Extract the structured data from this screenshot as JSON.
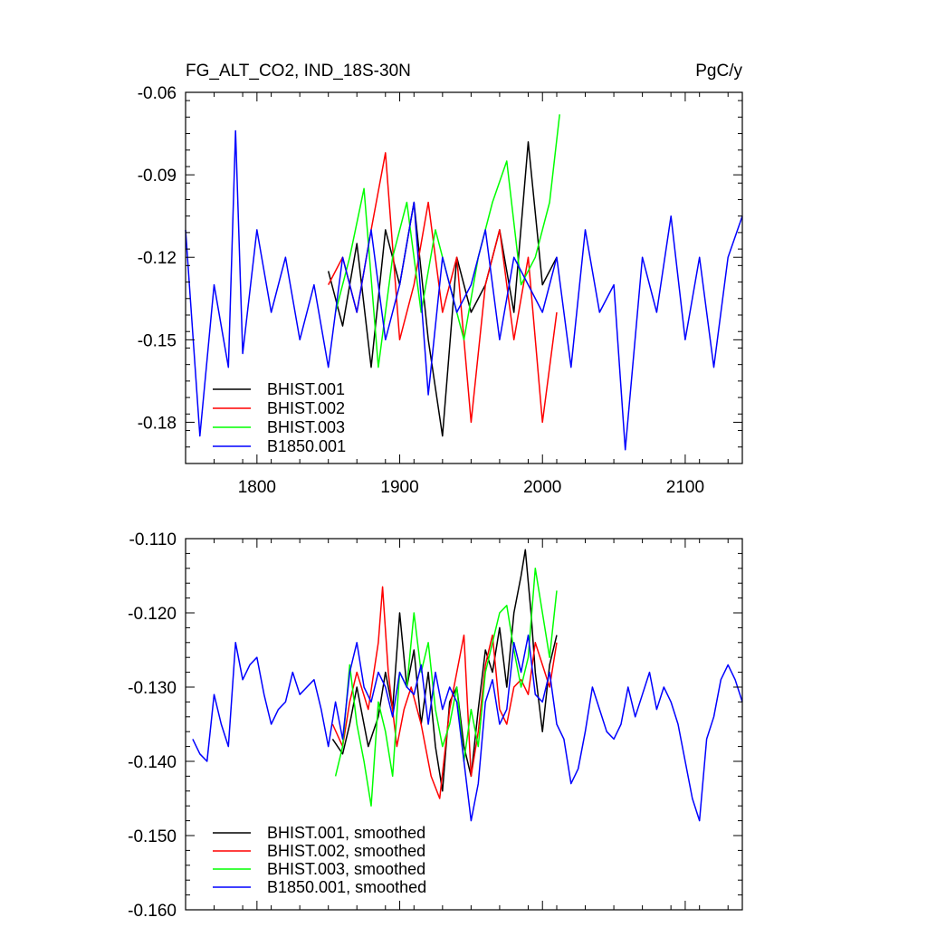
{
  "chart_data": [
    {
      "type": "line",
      "title": "FG_ALT_CO2, IND_18S-30N",
      "units": "PgC/y",
      "xlim": [
        1750,
        2140
      ],
      "ylim": [
        -0.195,
        -0.06
      ],
      "xticks": [
        1800,
        1900,
        2000,
        2100
      ],
      "xtick_labels": [
        "1800",
        "1900",
        "2000",
        "2100"
      ],
      "yticks": [
        -0.18,
        -0.15,
        -0.12,
        -0.09,
        -0.06
      ],
      "ytick_labels": [
        "-0.18",
        "-0.15",
        "-0.12",
        "-0.09",
        "-0.06"
      ],
      "legend_position": "bottom-left",
      "series": [
        {
          "name": "BHIST.001",
          "color": "#000000",
          "x": [
            1850,
            1860,
            1870,
            1880,
            1890,
            1900,
            1910,
            1920,
            1930,
            1940,
            1950,
            1960,
            1970,
            1980,
            1990,
            2000,
            2010
          ],
          "y": [
            -0.125,
            -0.145,
            -0.115,
            -0.16,
            -0.11,
            -0.13,
            -0.1,
            -0.15,
            -0.185,
            -0.12,
            -0.14,
            -0.13,
            -0.11,
            -0.14,
            -0.078,
            -0.13,
            -0.12
          ]
        },
        {
          "name": "BHIST.002",
          "color": "#ff0000",
          "x": [
            1850,
            1860,
            1870,
            1880,
            1890,
            1900,
            1910,
            1920,
            1930,
            1940,
            1950,
            1960,
            1970,
            1980,
            1990,
            2000,
            2010
          ],
          "y": [
            -0.13,
            -0.12,
            -0.14,
            -0.11,
            -0.082,
            -0.15,
            -0.13,
            -0.1,
            -0.14,
            -0.12,
            -0.18,
            -0.13,
            -0.11,
            -0.15,
            -0.12,
            -0.18,
            -0.14
          ]
        },
        {
          "name": "BHIST.003",
          "color": "#00ff00",
          "x": [
            1855,
            1865,
            1875,
            1885,
            1895,
            1905,
            1915,
            1925,
            1935,
            1945,
            1955,
            1965,
            1975,
            1985,
            1995,
            2005,
            2012
          ],
          "y": [
            -0.14,
            -0.12,
            -0.095,
            -0.16,
            -0.12,
            -0.1,
            -0.14,
            -0.11,
            -0.13,
            -0.15,
            -0.12,
            -0.1,
            -0.085,
            -0.13,
            -0.12,
            -0.1,
            -0.068
          ]
        },
        {
          "name": "B1850.001",
          "color": "#0000ff",
          "x": [
            1750,
            1760,
            1770,
            1780,
            1785,
            1790,
            1800,
            1810,
            1820,
            1830,
            1840,
            1850,
            1860,
            1870,
            1880,
            1890,
            1900,
            1910,
            1920,
            1930,
            1940,
            1950,
            1960,
            1970,
            1980,
            1990,
            2000,
            2010,
            2020,
            2030,
            2040,
            2050,
            2058,
            2070,
            2080,
            2090,
            2100,
            2110,
            2120,
            2130,
            2140
          ],
          "y": [
            -0.11,
            -0.185,
            -0.13,
            -0.16,
            -0.074,
            -0.155,
            -0.11,
            -0.14,
            -0.12,
            -0.15,
            -0.13,
            -0.16,
            -0.12,
            -0.14,
            -0.11,
            -0.15,
            -0.13,
            -0.1,
            -0.17,
            -0.12,
            -0.14,
            -0.13,
            -0.11,
            -0.15,
            -0.12,
            -0.13,
            -0.14,
            -0.12,
            -0.16,
            -0.11,
            -0.14,
            -0.13,
            -0.19,
            -0.12,
            -0.14,
            -0.105,
            -0.15,
            -0.12,
            -0.16,
            -0.12,
            -0.105
          ]
        }
      ]
    },
    {
      "type": "line",
      "xlim": [
        1750,
        2140
      ],
      "ylim": [
        -0.16,
        -0.11
      ],
      "xticks": [
        1800,
        1900,
        2000,
        2100
      ],
      "yticks": [
        -0.16,
        -0.15,
        -0.14,
        -0.13,
        -0.12,
        -0.11
      ],
      "ytick_labels": [
        "-0.160",
        "-0.150",
        "-0.140",
        "-0.130",
        "-0.120",
        "-0.110"
      ],
      "legend_position": "bottom-left",
      "series": [
        {
          "name": "BHIST.001, smoothed",
          "color": "#000000",
          "x": [
            1853,
            1860,
            1865,
            1870,
            1878,
            1885,
            1890,
            1895,
            1900,
            1905,
            1910,
            1915,
            1920,
            1925,
            1930,
            1935,
            1940,
            1945,
            1950,
            1955,
            1960,
            1965,
            1970,
            1975,
            1980,
            1985,
            1988,
            1992,
            1995,
            2000,
            2005,
            2010
          ],
          "y": [
            -0.137,
            -0.139,
            -0.135,
            -0.13,
            -0.138,
            -0.134,
            -0.128,
            -0.133,
            -0.12,
            -0.13,
            -0.125,
            -0.135,
            -0.128,
            -0.138,
            -0.144,
            -0.132,
            -0.13,
            -0.138,
            -0.142,
            -0.133,
            -0.125,
            -0.128,
            -0.122,
            -0.13,
            -0.12,
            -0.115,
            -0.1115,
            -0.12,
            -0.128,
            -0.136,
            -0.127,
            -0.123
          ]
        },
        {
          "name": "BHIST.002, smoothed",
          "color": "#ff0000",
          "x": [
            1853,
            1860,
            1865,
            1870,
            1878,
            1885,
            1888,
            1892,
            1898,
            1903,
            1908,
            1915,
            1922,
            1928,
            1935,
            1940,
            1945,
            1950,
            1955,
            1960,
            1965,
            1970,
            1975,
            1980,
            1985,
            1990,
            1995,
            2000,
            2005,
            2010
          ],
          "y": [
            -0.135,
            -0.138,
            -0.132,
            -0.128,
            -0.133,
            -0.124,
            -0.1165,
            -0.128,
            -0.138,
            -0.133,
            -0.13,
            -0.135,
            -0.142,
            -0.145,
            -0.133,
            -0.128,
            -0.123,
            -0.142,
            -0.136,
            -0.127,
            -0.123,
            -0.133,
            -0.135,
            -0.13,
            -0.129,
            -0.131,
            -0.124,
            -0.127,
            -0.13,
            -0.124
          ]
        },
        {
          "name": "BHIST.003, smoothed",
          "color": "#00ff00",
          "x": [
            1855,
            1860,
            1865,
            1870,
            1875,
            1880,
            1885,
            1890,
            1895,
            1900,
            1905,
            1910,
            1915,
            1920,
            1925,
            1930,
            1935,
            1940,
            1945,
            1950,
            1955,
            1960,
            1965,
            1970,
            1975,
            1980,
            1985,
            1990,
            1995,
            2000,
            2005,
            2010
          ],
          "y": [
            -0.142,
            -0.138,
            -0.127,
            -0.135,
            -0.14,
            -0.146,
            -0.132,
            -0.136,
            -0.142,
            -0.128,
            -0.13,
            -0.12,
            -0.128,
            -0.124,
            -0.133,
            -0.138,
            -0.135,
            -0.13,
            -0.14,
            -0.133,
            -0.138,
            -0.128,
            -0.124,
            -0.12,
            -0.119,
            -0.125,
            -0.13,
            -0.126,
            -0.114,
            -0.12,
            -0.126,
            -0.117
          ]
        },
        {
          "name": "B1850.001, smoothed",
          "color": "#0000ff",
          "x": [
            1755,
            1760,
            1765,
            1770,
            1775,
            1780,
            1785,
            1790,
            1795,
            1800,
            1805,
            1810,
            1815,
            1820,
            1825,
            1830,
            1835,
            1840,
            1845,
            1850,
            1855,
            1860,
            1865,
            1870,
            1875,
            1880,
            1885,
            1890,
            1895,
            1900,
            1905,
            1910,
            1915,
            1920,
            1925,
            1930,
            1935,
            1940,
            1945,
            1950,
            1955,
            1960,
            1965,
            1970,
            1975,
            1980,
            1985,
            1990,
            1995,
            2000,
            2005,
            2010,
            2015,
            2020,
            2025,
            2030,
            2035,
            2040,
            2045,
            2050,
            2055,
            2060,
            2065,
            2070,
            2075,
            2080,
            2085,
            2090,
            2095,
            2100,
            2105,
            2110,
            2115,
            2120,
            2125,
            2130,
            2135,
            2140
          ],
          "y": [
            -0.137,
            -0.139,
            -0.14,
            -0.131,
            -0.135,
            -0.138,
            -0.124,
            -0.129,
            -0.127,
            -0.126,
            -0.131,
            -0.135,
            -0.133,
            -0.132,
            -0.128,
            -0.131,
            -0.13,
            -0.129,
            -0.133,
            -0.138,
            -0.132,
            -0.137,
            -0.128,
            -0.124,
            -0.13,
            -0.132,
            -0.128,
            -0.13,
            -0.134,
            -0.128,
            -0.13,
            -0.131,
            -0.127,
            -0.135,
            -0.128,
            -0.133,
            -0.13,
            -0.132,
            -0.14,
            -0.148,
            -0.143,
            -0.132,
            -0.129,
            -0.135,
            -0.133,
            -0.124,
            -0.128,
            -0.123,
            -0.131,
            -0.132,
            -0.128,
            -0.135,
            -0.137,
            -0.143,
            -0.141,
            -0.136,
            -0.13,
            -0.133,
            -0.136,
            -0.137,
            -0.135,
            -0.13,
            -0.134,
            -0.131,
            -0.128,
            -0.133,
            -0.13,
            -0.132,
            -0.135,
            -0.14,
            -0.145,
            -0.148,
            -0.137,
            -0.134,
            -0.129,
            -0.127,
            -0.129,
            -0.132
          ]
        }
      ]
    }
  ]
}
